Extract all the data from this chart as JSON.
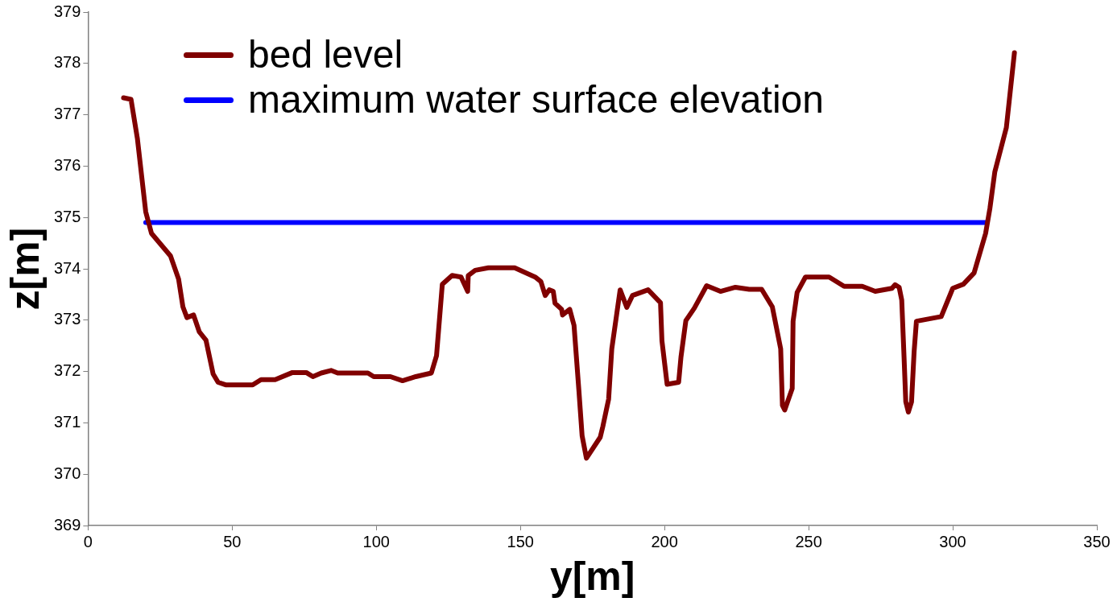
{
  "chart_data": {
    "type": "line",
    "xlabel": "y[m]",
    "ylabel": "z[m]",
    "xlim": [
      0,
      350
    ],
    "xticks": [
      0,
      50,
      100,
      150,
      200,
      250,
      300,
      350
    ],
    "ylim": [
      369,
      379
    ],
    "yticks": [
      369,
      370,
      371,
      372,
      373,
      374,
      375,
      376,
      377,
      378,
      379
    ],
    "grid": false,
    "legend": "top left",
    "marker": "none",
    "line_style": "solid",
    "series": [
      {
        "name": "bed level",
        "color": "#800000",
        "x": [
          12.3,
          14.9,
          17.1,
          20,
          22,
          28.6,
          31.4,
          32.9,
          34.3,
          36.6,
          38.6,
          40.9,
          43.4,
          45.1,
          47.7,
          57.1,
          60,
          64.9,
          70.9,
          75.7,
          78,
          80.9,
          84.3,
          86.6,
          97.1,
          99.1,
          104.9,
          109.1,
          113.7,
          119.1,
          120.9,
          122.9,
          126.3,
          129.4,
          131.7,
          131.9,
          134.3,
          138.9,
          148,
          155.1,
          157.1,
          158.6,
          160,
          161.4,
          162,
          164.3,
          164.6,
          167.1,
          168.6,
          170.3,
          171.4,
          172.9,
          177.7,
          178.6,
          180.6,
          181.7,
          184.6,
          186.9,
          188.9,
          194.3,
          198.6,
          199.1,
          200.9,
          204.9,
          205.7,
          207.4,
          210.3,
          214.6,
          219.4,
          224.6,
          229.4,
          233.7,
          237.4,
          240.3,
          240.9,
          241.7,
          244.3,
          244.6,
          246,
          248.9,
          257.1,
          262.3,
          268.6,
          273.1,
          278.9,
          280,
          281.4,
          282.3,
          283.1,
          283.7,
          284.6,
          285.7,
          286.6,
          287.4,
          296,
          300,
          303.7,
          307.4,
          311.4,
          312.9,
          314.6,
          318.6,
          321.4
        ],
        "values": [
          377.33,
          377.3,
          376.54,
          375.11,
          374.69,
          374.25,
          373.8,
          373.26,
          373.05,
          373.1,
          372.77,
          372.61,
          371.95,
          371.79,
          371.74,
          371.74,
          371.84,
          371.84,
          371.98,
          371.98,
          371.9,
          371.97,
          372.02,
          371.97,
          371.97,
          371.9,
          371.9,
          371.82,
          371.9,
          371.97,
          372.31,
          373.7,
          373.87,
          373.84,
          373.56,
          373.87,
          373.97,
          374.02,
          374.02,
          373.84,
          373.75,
          373.48,
          373.59,
          373.56,
          373.33,
          373.21,
          373.1,
          373.21,
          372.9,
          371.62,
          370.75,
          370.31,
          370.72,
          370.93,
          371.46,
          372.44,
          373.59,
          373.25,
          373.48,
          373.59,
          373.34,
          372.6,
          371.75,
          371.79,
          372.28,
          372.99,
          373.23,
          373.67,
          373.56,
          373.64,
          373.6,
          373.6,
          373.26,
          372.44,
          371.34,
          371.25,
          371.67,
          372.98,
          373.54,
          373.84,
          373.84,
          373.66,
          373.66,
          373.56,
          373.62,
          373.69,
          373.64,
          373.39,
          372.28,
          371.41,
          371.21,
          371.41,
          372.39,
          372.98,
          373.07,
          373.62,
          373.7,
          373.92,
          374.69,
          375.18,
          375.89,
          376.75,
          378.21
        ]
      },
      {
        "name": "maximum water surface elevation",
        "color": "#0000ff",
        "x": [
          20,
          311.7
        ],
        "values": [
          374.9,
          374.9
        ]
      }
    ]
  }
}
